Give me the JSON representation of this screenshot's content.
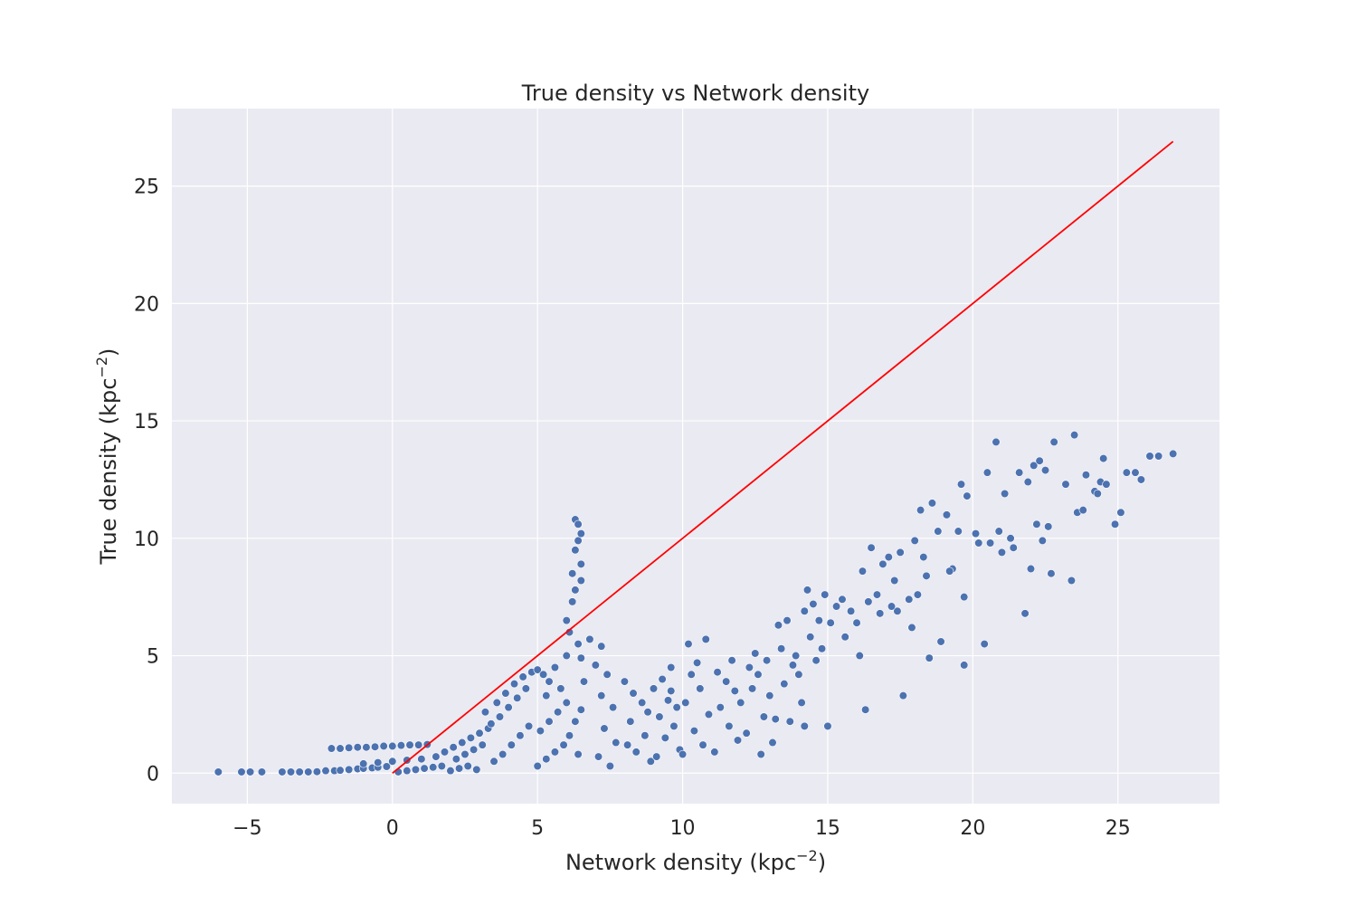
{
  "chart_data": {
    "type": "scatter",
    "title": "True density vs Network density",
    "xlabel": {
      "base": "Network density (kpc",
      "sup": "−2",
      "close": ")"
    },
    "ylabel": {
      "base": "True density (kpc",
      "sup": "−2",
      "close": ")"
    },
    "xlim": [
      -7.6,
      28.5
    ],
    "ylim": [
      -1.3,
      28.3
    ],
    "xticks": [
      {
        "value": -5,
        "label": "−5"
      },
      {
        "value": 0,
        "label": "0"
      },
      {
        "value": 5,
        "label": "5"
      },
      {
        "value": 10,
        "label": "10"
      },
      {
        "value": 15,
        "label": "15"
      },
      {
        "value": 20,
        "label": "20"
      },
      {
        "value": 25,
        "label": "25"
      }
    ],
    "yticks": [
      {
        "value": 0,
        "label": "0"
      },
      {
        "value": 5,
        "label": "5"
      },
      {
        "value": 10,
        "label": "10"
      },
      {
        "value": 15,
        "label": "15"
      },
      {
        "value": 20,
        "label": "20"
      },
      {
        "value": 25,
        "label": "25"
      }
    ],
    "grid": true,
    "colors": {
      "background": "#eaeaf2",
      "grid": "#ffffff",
      "points": "#4c72b0",
      "reference_line": "#ff0000"
    },
    "reference_line": {
      "x": [
        0,
        26.9
      ],
      "y": [
        0,
        26.9
      ]
    },
    "series": [
      {
        "values": [
          [
            -6.0,
            0.05
          ],
          [
            -5.2,
            0.05
          ],
          [
            -4.9,
            0.05
          ],
          [
            -4.5,
            0.05
          ],
          [
            -3.8,
            0.05
          ],
          [
            -3.5,
            0.05
          ],
          [
            -3.2,
            0.05
          ],
          [
            -2.9,
            0.05
          ],
          [
            -2.6,
            0.06
          ],
          [
            -2.3,
            0.1
          ],
          [
            -2.0,
            0.1
          ],
          [
            -1.8,
            0.12
          ],
          [
            -1.5,
            0.15
          ],
          [
            -1.2,
            0.18
          ],
          [
            -1.0,
            0.2
          ],
          [
            -0.7,
            0.22
          ],
          [
            -0.5,
            0.25
          ],
          [
            -0.2,
            0.28
          ],
          [
            -2.1,
            1.05
          ],
          [
            -1.8,
            1.05
          ],
          [
            -1.5,
            1.08
          ],
          [
            -1.2,
            1.1
          ],
          [
            -0.9,
            1.1
          ],
          [
            -0.6,
            1.12
          ],
          [
            -0.3,
            1.15
          ],
          [
            0.0,
            1.15
          ],
          [
            0.3,
            1.18
          ],
          [
            0.6,
            1.2
          ],
          [
            0.9,
            1.2
          ],
          [
            1.2,
            1.22
          ],
          [
            -1.0,
            0.4
          ],
          [
            -0.5,
            0.45
          ],
          [
            0.0,
            0.5
          ],
          [
            0.5,
            0.55
          ],
          [
            1.0,
            0.6
          ],
          [
            1.5,
            0.7
          ],
          [
            0.2,
            0.05
          ],
          [
            0.5,
            0.1
          ],
          [
            0.8,
            0.15
          ],
          [
            1.1,
            0.2
          ],
          [
            1.4,
            0.25
          ],
          [
            1.7,
            0.3
          ],
          [
            2.0,
            0.1
          ],
          [
            2.3,
            0.2
          ],
          [
            2.6,
            0.3
          ],
          [
            2.9,
            0.15
          ],
          [
            1.8,
            0.9
          ],
          [
            2.1,
            1.1
          ],
          [
            2.4,
            1.3
          ],
          [
            2.7,
            1.5
          ],
          [
            3.0,
            1.7
          ],
          [
            3.3,
            1.9
          ],
          [
            2.2,
            0.6
          ],
          [
            2.5,
            0.8
          ],
          [
            2.8,
            1.0
          ],
          [
            3.1,
            1.2
          ],
          [
            3.4,
            2.1
          ],
          [
            3.7,
            2.4
          ],
          [
            4.0,
            2.8
          ],
          [
            4.3,
            3.2
          ],
          [
            4.6,
            3.6
          ],
          [
            3.5,
            0.5
          ],
          [
            3.8,
            0.8
          ],
          [
            4.1,
            1.2
          ],
          [
            4.4,
            1.6
          ],
          [
            4.7,
            2.0
          ],
          [
            3.2,
            2.6
          ],
          [
            3.6,
            3.0
          ],
          [
            3.9,
            3.4
          ],
          [
            4.2,
            3.8
          ],
          [
            4.5,
            4.1
          ],
          [
            4.8,
            4.3
          ],
          [
            5.0,
            4.4
          ],
          [
            5.2,
            4.2
          ],
          [
            5.4,
            3.9
          ],
          [
            5.6,
            4.5
          ],
          [
            5.0,
            0.3
          ],
          [
            5.3,
            0.6
          ],
          [
            5.6,
            0.9
          ],
          [
            5.9,
            1.2
          ],
          [
            5.1,
            1.8
          ],
          [
            5.4,
            2.2
          ],
          [
            5.7,
            2.6
          ],
          [
            6.0,
            3.0
          ],
          [
            5.3,
            3.3
          ],
          [
            5.8,
            3.6
          ],
          [
            6.0,
            5.0
          ],
          [
            6.1,
            6.0
          ],
          [
            6.2,
            7.3
          ],
          [
            6.3,
            7.8
          ],
          [
            6.0,
            6.5
          ],
          [
            6.2,
            8.5
          ],
          [
            6.3,
            9.5
          ],
          [
            6.4,
            9.9
          ],
          [
            6.5,
            10.2
          ],
          [
            6.3,
            10.8
          ],
          [
            6.4,
            10.6
          ],
          [
            6.5,
            8.9
          ],
          [
            6.5,
            8.2
          ],
          [
            6.4,
            5.5
          ],
          [
            6.5,
            4.9
          ],
          [
            6.6,
            3.9
          ],
          [
            6.5,
            2.7
          ],
          [
            6.3,
            2.2
          ],
          [
            6.1,
            1.6
          ],
          [
            6.4,
            0.8
          ],
          [
            6.8,
            5.7
          ],
          [
            7.2,
            5.4
          ],
          [
            7.0,
            4.6
          ],
          [
            7.4,
            4.2
          ],
          [
            7.2,
            3.3
          ],
          [
            7.6,
            2.8
          ],
          [
            7.3,
            1.9
          ],
          [
            7.7,
            1.3
          ],
          [
            7.1,
            0.7
          ],
          [
            7.5,
            0.3
          ],
          [
            8.0,
            3.9
          ],
          [
            8.3,
            3.4
          ],
          [
            8.6,
            3.0
          ],
          [
            8.2,
            2.2
          ],
          [
            8.7,
            1.6
          ],
          [
            8.4,
            0.9
          ],
          [
            8.9,
            0.5
          ],
          [
            8.1,
            1.2
          ],
          [
            8.8,
            2.6
          ],
          [
            9.0,
            3.6
          ],
          [
            9.3,
            4.0
          ],
          [
            9.6,
            3.5
          ],
          [
            9.2,
            2.4
          ],
          [
            9.8,
            2.8
          ],
          [
            9.4,
            1.5
          ],
          [
            9.9,
            1.0
          ],
          [
            9.6,
            4.5
          ],
          [
            9.1,
            0.7
          ],
          [
            9.7,
            2.0
          ],
          [
            9.5,
            3.1
          ],
          [
            10.2,
            5.5
          ],
          [
            10.5,
            4.7
          ],
          [
            10.8,
            5.7
          ],
          [
            10.3,
            4.2
          ],
          [
            10.6,
            3.6
          ],
          [
            10.1,
            3.0
          ],
          [
            10.9,
            2.5
          ],
          [
            10.4,
            1.8
          ],
          [
            10.7,
            1.2
          ],
          [
            10.0,
            0.8
          ],
          [
            11.2,
            4.3
          ],
          [
            11.5,
            3.9
          ],
          [
            11.8,
            3.5
          ],
          [
            11.3,
            2.8
          ],
          [
            11.6,
            2.0
          ],
          [
            11.9,
            1.4
          ],
          [
            11.1,
            0.9
          ],
          [
            11.7,
            4.8
          ],
          [
            12.0,
            3.0
          ],
          [
            12.2,
            1.7
          ],
          [
            12.3,
            4.5
          ],
          [
            12.6,
            4.2
          ],
          [
            12.9,
            4.8
          ],
          [
            12.4,
            3.6
          ],
          [
            12.8,
            2.4
          ],
          [
            13.1,
            1.3
          ],
          [
            12.5,
            5.1
          ],
          [
            13.0,
            3.3
          ],
          [
            12.7,
            0.8
          ],
          [
            13.2,
            2.3
          ],
          [
            13.3,
            6.3
          ],
          [
            13.6,
            6.5
          ],
          [
            13.4,
            5.3
          ],
          [
            13.8,
            4.6
          ],
          [
            13.5,
            3.8
          ],
          [
            13.9,
            5.0
          ],
          [
            14.1,
            3.0
          ],
          [
            13.7,
            2.2
          ],
          [
            14.2,
            2.0
          ],
          [
            14.0,
            4.2
          ],
          [
            14.3,
            7.8
          ],
          [
            14.5,
            7.2
          ],
          [
            14.7,
            6.5
          ],
          [
            14.4,
            5.8
          ],
          [
            14.8,
            5.3
          ],
          [
            14.6,
            4.8
          ],
          [
            15.0,
            2.0
          ],
          [
            14.9,
            7.6
          ],
          [
            15.1,
            6.4
          ],
          [
            14.2,
            6.9
          ],
          [
            15.3,
            7.1
          ],
          [
            15.5,
            7.4
          ],
          [
            15.8,
            6.9
          ],
          [
            16.0,
            6.4
          ],
          [
            15.6,
            5.8
          ],
          [
            16.2,
            8.6
          ],
          [
            16.4,
            7.3
          ],
          [
            16.1,
            5.0
          ],
          [
            16.3,
            2.7
          ],
          [
            16.5,
            9.6
          ],
          [
            16.7,
            7.6
          ],
          [
            16.9,
            8.9
          ],
          [
            17.1,
            9.2
          ],
          [
            17.3,
            8.2
          ],
          [
            16.8,
            6.8
          ],
          [
            17.5,
            9.4
          ],
          [
            17.4,
            6.9
          ],
          [
            17.6,
            3.3
          ],
          [
            17.8,
            7.4
          ],
          [
            17.2,
            7.1
          ],
          [
            18.0,
            9.9
          ],
          [
            18.2,
            11.2
          ],
          [
            18.4,
            8.4
          ],
          [
            18.6,
            11.5
          ],
          [
            18.1,
            7.6
          ],
          [
            18.5,
            4.9
          ],
          [
            18.8,
            10.3
          ],
          [
            18.9,
            5.6
          ],
          [
            18.3,
            9.2
          ],
          [
            17.9,
            6.2
          ],
          [
            19.1,
            11.0
          ],
          [
            19.3,
            8.7
          ],
          [
            19.5,
            10.3
          ],
          [
            19.6,
            12.3
          ],
          [
            19.7,
            7.5
          ],
          [
            19.8,
            11.8
          ],
          [
            19.7,
            4.6
          ],
          [
            19.2,
            8.6
          ],
          [
            20.2,
            9.8
          ],
          [
            20.1,
            10.2
          ],
          [
            20.5,
            12.8
          ],
          [
            20.8,
            14.1
          ],
          [
            21.1,
            11.9
          ],
          [
            20.4,
            5.5
          ],
          [
            20.6,
            9.8
          ],
          [
            20.9,
            10.3
          ],
          [
            21.3,
            10.0
          ],
          [
            21.6,
            12.8
          ],
          [
            21.4,
            9.6
          ],
          [
            21.8,
            6.8
          ],
          [
            21.9,
            12.4
          ],
          [
            22.1,
            13.1
          ],
          [
            22.3,
            13.3
          ],
          [
            22.0,
            8.7
          ],
          [
            22.2,
            10.6
          ],
          [
            22.4,
            9.9
          ],
          [
            22.6,
            10.5
          ],
          [
            22.7,
            8.5
          ],
          [
            22.5,
            12.9
          ],
          [
            23.2,
            12.3
          ],
          [
            23.5,
            14.4
          ],
          [
            23.4,
            8.2
          ],
          [
            23.6,
            11.1
          ],
          [
            23.9,
            12.7
          ],
          [
            24.2,
            12.0
          ],
          [
            24.4,
            12.4
          ],
          [
            24.6,
            12.3
          ],
          [
            24.5,
            13.4
          ],
          [
            24.9,
            10.6
          ],
          [
            25.1,
            11.1
          ],
          [
            25.3,
            12.8
          ],
          [
            25.6,
            12.8
          ],
          [
            25.8,
            12.5
          ],
          [
            26.1,
            13.5
          ],
          [
            26.4,
            13.5
          ],
          [
            26.9,
            13.6
          ],
          [
            23.8,
            11.2
          ],
          [
            24.3,
            11.9
          ],
          [
            22.8,
            14.1
          ],
          [
            21.0,
            9.4
          ]
        ]
      }
    ]
  }
}
